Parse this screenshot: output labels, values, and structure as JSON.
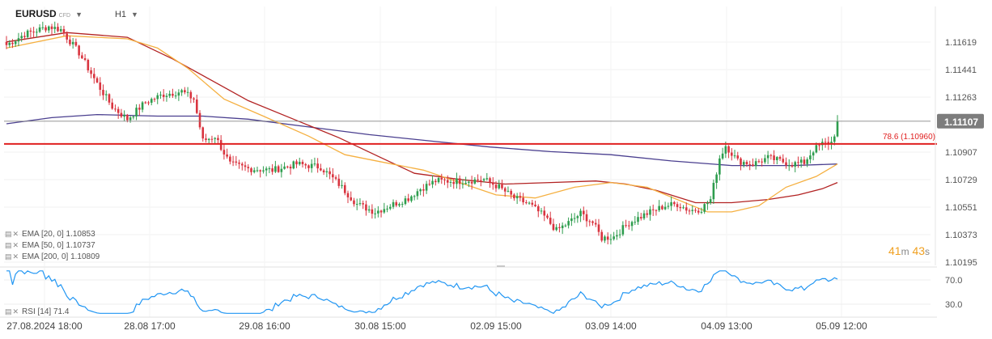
{
  "header": {
    "symbol": "EURUSD",
    "instrument_type": "CFD",
    "timeframe": "H1"
  },
  "indicators": [
    {
      "label": "EMA [20, 0] 1.10853",
      "color": "#f5b041"
    },
    {
      "label": "EMA [50, 0] 1.10737",
      "color": "#b22222"
    },
    {
      "label": "EMA [200, 0] 1.10809",
      "color": "#4a3f8f"
    }
  ],
  "rsi_label": "RSI [14] 71.4",
  "timer": {
    "minutes": "41",
    "m": "m",
    "seconds": "43",
    "s": "s"
  },
  "colors": {
    "up": "#2e9d4e",
    "down": "#d9343f",
    "level": "#e02020",
    "rsi": "#2196f3",
    "ema20": "#f5b041",
    "ema50": "#b22222",
    "ema200": "#4a3f8f"
  },
  "chart_data": {
    "type": "candlestick",
    "instrument": "EURUSD",
    "timeframe": "H1",
    "price_ticks": [
      "1.11619",
      "1.11441",
      "1.11263",
      "1.10907",
      "1.10729",
      "1.10551",
      "1.10373",
      "1.10195"
    ],
    "price_tick_values": [
      1.11619,
      1.11441,
      1.11263,
      1.10907,
      1.10729,
      1.10551,
      1.10373,
      1.10195
    ],
    "ylim": [
      1.1017,
      1.1178
    ],
    "current_price": "1.11107",
    "current_price_value": 1.11107,
    "level": {
      "label": "78.6 (1.10960)",
      "value": 1.1096
    },
    "x_ticks": [
      "27.08.2024  18:00",
      "28.08  17:00",
      "29.08  16:00",
      "30.08  15:00",
      "02.09  15:00",
      "03.09  14:00",
      "04.09  13:00",
      "05.09  12:00"
    ],
    "ema20": [
      [
        0,
        1.1158
      ],
      [
        20,
        1.1166
      ],
      [
        40,
        1.1164
      ],
      [
        50,
        1.1158
      ],
      [
        60,
        1.1145
      ],
      [
        72,
        1.1125
      ],
      [
        85,
        1.1114
      ],
      [
        100,
        1.1101
      ],
      [
        112,
        1.1089
      ],
      [
        125,
        1.1084
      ],
      [
        138,
        1.1079
      ],
      [
        150,
        1.1071
      ],
      [
        162,
        1.1063
      ],
      [
        175,
        1.1061
      ],
      [
        188,
        1.1068
      ],
      [
        200,
        1.1071
      ],
      [
        212,
        1.1068
      ],
      [
        222,
        1.106
      ],
      [
        232,
        1.1052
      ],
      [
        240,
        1.1052
      ],
      [
        249,
        1.1056
      ],
      [
        258,
        1.1068
      ],
      [
        268,
        1.1075
      ],
      [
        275,
        1.1083
      ]
    ],
    "ema50": [
      [
        0,
        1.1162
      ],
      [
        20,
        1.1168
      ],
      [
        40,
        1.1165
      ],
      [
        55,
        1.1151
      ],
      [
        68,
        1.1137
      ],
      [
        80,
        1.1124
      ],
      [
        95,
        1.1112
      ],
      [
        110,
        1.11
      ],
      [
        123,
        1.1088
      ],
      [
        135,
        1.1077
      ],
      [
        150,
        1.1073
      ],
      [
        165,
        1.107
      ],
      [
        180,
        1.1071
      ],
      [
        195,
        1.1072
      ],
      [
        205,
        1.107
      ],
      [
        215,
        1.1066
      ],
      [
        228,
        1.1058
      ],
      [
        240,
        1.1058
      ],
      [
        252,
        1.106
      ],
      [
        262,
        1.1063
      ],
      [
        270,
        1.1067
      ],
      [
        275,
        1.1071
      ]
    ],
    "ema200": [
      [
        0,
        1.1109
      ],
      [
        15,
        1.1113
      ],
      [
        30,
        1.1115
      ],
      [
        50,
        1.1114
      ],
      [
        65,
        1.1114
      ],
      [
        80,
        1.1112
      ],
      [
        100,
        1.1107
      ],
      [
        120,
        1.1102
      ],
      [
        140,
        1.1098
      ],
      [
        160,
        1.1094
      ],
      [
        180,
        1.1091
      ],
      [
        200,
        1.1089
      ],
      [
        220,
        1.1085
      ],
      [
        240,
        1.1082
      ],
      [
        260,
        1.1082
      ],
      [
        275,
        1.1083
      ]
    ],
    "rsi": {
      "range": [
        10,
        90
      ],
      "ticks": [
        "70.0",
        "30.0"
      ],
      "tick_values": [
        70,
        30
      ],
      "last": 71.4
    },
    "candle_count": 276
  }
}
